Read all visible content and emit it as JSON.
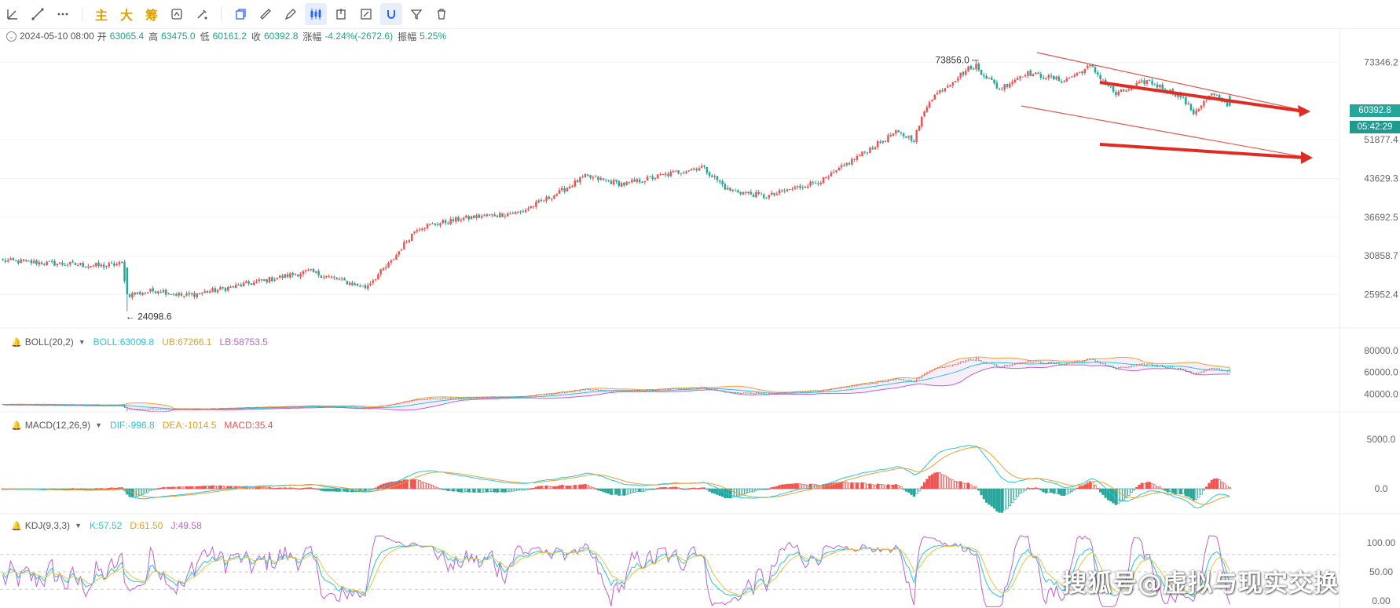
{
  "toolbar": {
    "tools": [
      {
        "name": "ray-tool-icon",
        "glyph": "◺"
      },
      {
        "name": "trendline-tool-icon",
        "glyph": "╱"
      },
      {
        "name": "more-tools-icon",
        "glyph": "⋯"
      }
    ],
    "text_tools": [
      "主",
      "大",
      "筹"
    ],
    "actions": [
      {
        "name": "compare-icon",
        "glyph": "⟳"
      },
      {
        "name": "brush-icon",
        "glyph": "✎"
      },
      {
        "name": "copy-icon",
        "glyph": "❐"
      },
      {
        "name": "ruler-icon",
        "glyph": "⌇"
      },
      {
        "name": "pen-icon",
        "glyph": "✐"
      },
      {
        "name": "candle-type-icon",
        "glyph": "▯"
      },
      {
        "name": "export-icon",
        "glyph": "⇪"
      },
      {
        "name": "edit-icon",
        "glyph": "✍"
      },
      {
        "name": "magnet-icon",
        "glyph": "∩"
      },
      {
        "name": "filter-icon",
        "glyph": "⏷"
      },
      {
        "name": "delete-icon",
        "glyph": "🗑"
      }
    ]
  },
  "info": {
    "date": "2024-05-10 08:00",
    "open_label": "开",
    "open": "63065.4",
    "high_label": "高",
    "high": "63475.0",
    "low_label": "低",
    "low": "60161.2",
    "close_label": "收",
    "close": "60392.8",
    "change_label": "涨幅",
    "change": "-4.24%(-2672.6)",
    "amplitude_label": "振幅",
    "amplitude": "5.25%"
  },
  "price_tags": {
    "last_price": "60392.8",
    "countdown": "05:42:29"
  },
  "boll_legend": {
    "name": "BOLL(20,2)",
    "mid": "BOLL:63009.8",
    "ub": "UB:67266.1",
    "lb": "LB:58753.5"
  },
  "macd_legend": {
    "name": "MACD(12,26,9)",
    "dif": "DIF:-996.8",
    "dea": "DEA:-1014.5",
    "macd": "MACD:35.4"
  },
  "kdj_legend": {
    "name": "KDJ(9,3,3)",
    "k": "K:57.52",
    "d": "D:61.50",
    "j": "J:49.58"
  },
  "watermark": "搜狐号@虚拟与现实交换",
  "colors": {
    "up": "#ef5350",
    "down": "#26a69a",
    "boll_mid": "#26c6da",
    "boll_ub": "#f0a030",
    "boll_lb": "#c060d0",
    "dif": "#26c6da",
    "dea": "#f0a030",
    "k": "#26c6da",
    "d": "#f0c040",
    "j": "#c060d0",
    "arrow": "#e02a22"
  },
  "chart_data": {
    "type": "candlestick",
    "price_axis": {
      "ticks": [
        73346.2,
        51877.4,
        43629.3,
        36692.5,
        30858.7,
        25952.4
      ],
      "scale": "log"
    },
    "annotations": {
      "high": "73856.0",
      "low": "24098.6"
    },
    "waypoints": [
      {
        "i": 0,
        "p": 30200
      },
      {
        "i": 38,
        "p": 29500
      },
      {
        "i": 46,
        "p": 29800
      },
      {
        "i": 48,
        "p": 25900
      },
      {
        "i": 60,
        "p": 26500
      },
      {
        "i": 70,
        "p": 25800
      },
      {
        "i": 88,
        "p": 26800
      },
      {
        "i": 118,
        "p": 28800
      },
      {
        "i": 140,
        "p": 26800
      },
      {
        "i": 150,
        "p": 30000
      },
      {
        "i": 160,
        "p": 35000
      },
      {
        "i": 178,
        "p": 36500
      },
      {
        "i": 200,
        "p": 37500
      },
      {
        "i": 215,
        "p": 41000
      },
      {
        "i": 225,
        "p": 44000
      },
      {
        "i": 240,
        "p": 42500
      },
      {
        "i": 270,
        "p": 46000
      },
      {
        "i": 280,
        "p": 41500
      },
      {
        "i": 295,
        "p": 40200
      },
      {
        "i": 318,
        "p": 43500
      },
      {
        "i": 330,
        "p": 48000
      },
      {
        "i": 345,
        "p": 53500
      },
      {
        "i": 352,
        "p": 52000
      },
      {
        "i": 358,
        "p": 62000
      },
      {
        "i": 375,
        "p": 72500
      },
      {
        "i": 385,
        "p": 65000
      },
      {
        "i": 395,
        "p": 70000
      },
      {
        "i": 410,
        "p": 67500
      },
      {
        "i": 420,
        "p": 72000
      },
      {
        "i": 430,
        "p": 63500
      },
      {
        "i": 442,
        "p": 67500
      },
      {
        "i": 455,
        "p": 63000
      },
      {
        "i": 460,
        "p": 58500
      },
      {
        "i": 467,
        "p": 63500
      },
      {
        "i": 474,
        "p": 60392.8
      }
    ],
    "boll_axis": {
      "ticks": [
        80000.0,
        60000.0,
        40000.0
      ]
    },
    "macd_axis": {
      "ticks": [
        5000.0,
        0.0
      ]
    },
    "kdj_axis": {
      "ticks": [
        100.0,
        50.0,
        0.0
      ]
    }
  }
}
